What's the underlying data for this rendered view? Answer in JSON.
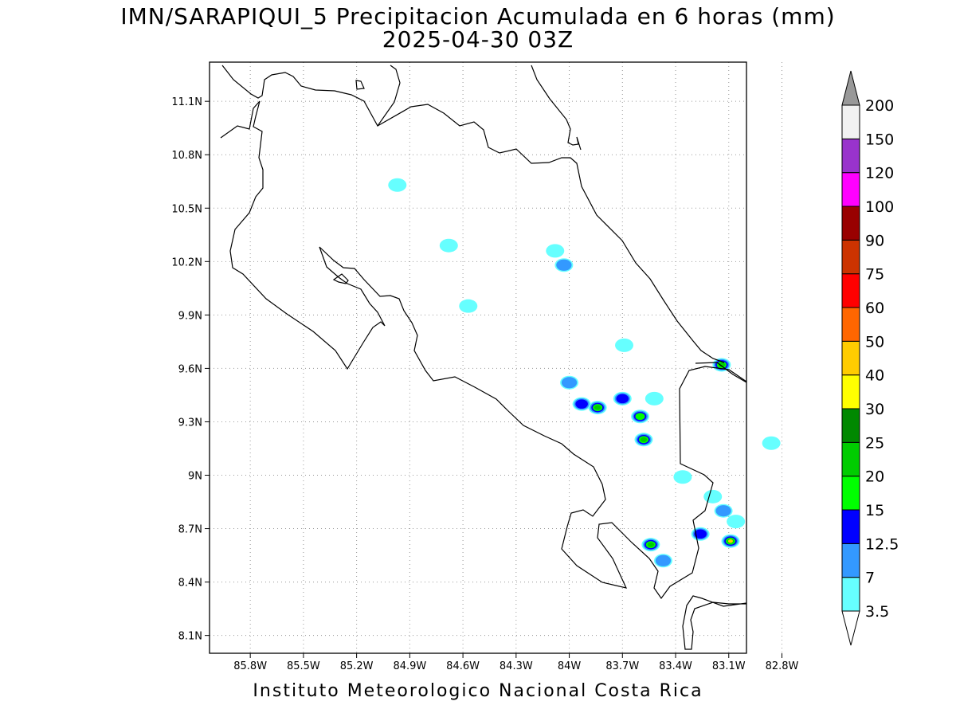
{
  "header": {
    "title_line1": "IMN/SARAPIQUI_5 Precipitacion Acumulada en 6 horas (mm)",
    "title_line2": "2025-04-30 03Z"
  },
  "footer": {
    "credit": "Instituto Meteorologico Nacional Costa Rica"
  },
  "map": {
    "lon_range": [
      -86.03,
      -83.0
    ],
    "lat_range": [
      8.0,
      11.32
    ],
    "grid": true,
    "x_ticks": [
      {
        "value": -85.8,
        "label": "85.8W"
      },
      {
        "value": -85.5,
        "label": "85.5W"
      },
      {
        "value": -85.2,
        "label": "85.2W"
      },
      {
        "value": -84.9,
        "label": "84.9W"
      },
      {
        "value": -84.6,
        "label": "84.6W"
      },
      {
        "value": -84.3,
        "label": "84.3W"
      },
      {
        "value": -84.0,
        "label": "84W"
      },
      {
        "value": -83.7,
        "label": "83.7W"
      },
      {
        "value": -83.4,
        "label": "83.4W"
      },
      {
        "value": -83.1,
        "label": "83.1W"
      },
      {
        "value": -82.8,
        "label": "82.8W"
      }
    ],
    "y_ticks": [
      {
        "value": 11.1,
        "label": "11.1N"
      },
      {
        "value": 10.8,
        "label": "10.8N"
      },
      {
        "value": 10.5,
        "label": "10.5N"
      },
      {
        "value": 10.2,
        "label": "10.2N"
      },
      {
        "value": 9.9,
        "label": "9.9N"
      },
      {
        "value": 9.6,
        "label": "9.6N"
      },
      {
        "value": 9.3,
        "label": "9.3N"
      },
      {
        "value": 9.0,
        "label": "9N"
      },
      {
        "value": 8.7,
        "label": "8.7N"
      },
      {
        "value": 8.4,
        "label": "8.4N"
      },
      {
        "value": 8.1,
        "label": "8.1N"
      }
    ],
    "precip_cells": [
      {
        "lon": -84.97,
        "lat": 10.63,
        "mm": 5
      },
      {
        "lon": -84.68,
        "lat": 10.29,
        "mm": 4
      },
      {
        "lon": -84.08,
        "lat": 10.26,
        "mm": 5
      },
      {
        "lon": -84.03,
        "lat": 10.18,
        "mm": 8
      },
      {
        "lon": -84.57,
        "lat": 9.95,
        "mm": 4
      },
      {
        "lon": -83.69,
        "lat": 9.73,
        "mm": 5
      },
      {
        "lon": -83.14,
        "lat": 9.62,
        "mm": 22
      },
      {
        "lon": -84.0,
        "lat": 9.52,
        "mm": 9
      },
      {
        "lon": -83.93,
        "lat": 9.4,
        "mm": 14
      },
      {
        "lon": -83.84,
        "lat": 9.38,
        "mm": 20
      },
      {
        "lon": -83.7,
        "lat": 9.43,
        "mm": 14
      },
      {
        "lon": -83.6,
        "lat": 9.33,
        "mm": 18
      },
      {
        "lon": -83.58,
        "lat": 9.2,
        "mm": 22
      },
      {
        "lon": -83.52,
        "lat": 9.43,
        "mm": 4
      },
      {
        "lon": -83.36,
        "lat": 8.99,
        "mm": 5
      },
      {
        "lon": -83.19,
        "lat": 8.88,
        "mm": 5
      },
      {
        "lon": -83.13,
        "lat": 8.8,
        "mm": 8
      },
      {
        "lon": -83.06,
        "lat": 8.74,
        "mm": 6
      },
      {
        "lon": -83.26,
        "lat": 8.67,
        "mm": 14
      },
      {
        "lon": -83.09,
        "lat": 8.63,
        "mm": 42
      },
      {
        "lon": -83.54,
        "lat": 8.61,
        "mm": 24
      },
      {
        "lon": -83.47,
        "lat": 8.52,
        "mm": 8
      },
      {
        "lon": -82.86,
        "lat": 9.18,
        "mm": 4
      }
    ]
  },
  "colorbar": {
    "levels": [
      "3.5",
      "7",
      "12.5",
      "15",
      "20",
      "25",
      "30",
      "40",
      "50",
      "60",
      "75",
      "90",
      "100",
      "120",
      "150",
      "200"
    ],
    "colors": [
      "#66ffff",
      "#3399ff",
      "#0000ff",
      "#00ff00",
      "#00cc00",
      "#008800",
      "#ffff00",
      "#ffcc00",
      "#ff6600",
      "#ff0000",
      "#cc3300",
      "#990000",
      "#ff00ff",
      "#9933cc",
      "#f2f2f2",
      "#999999"
    ]
  }
}
